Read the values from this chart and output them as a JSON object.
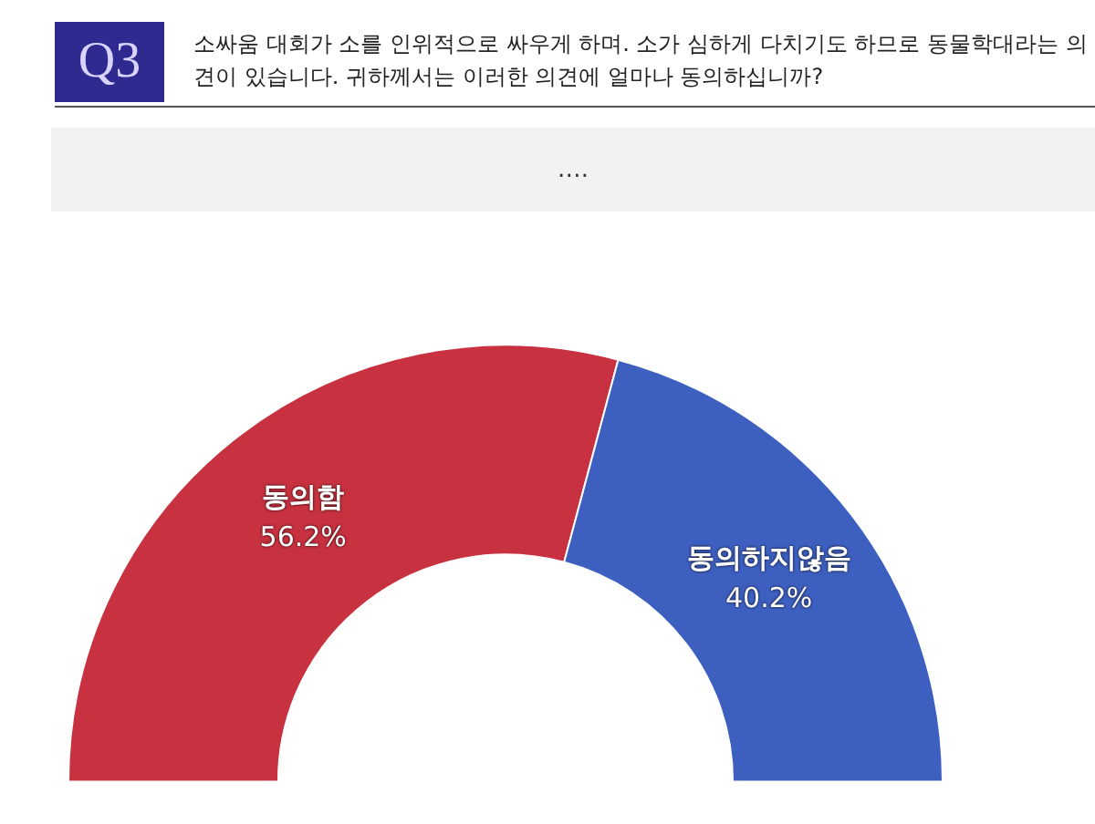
{
  "chart_data": {
    "type": "donut",
    "title": "소싸움 대회가 소를 인위적으로 싸우게 하며. 소가 심하게 다치기도 하므로 동물학대라는 의견이 있습니다. 귀하께서는 이러한 의견에 얼마나 동의하십니까?",
    "annotations": [
      "Q3",
      "…."
    ],
    "categories": [
      "동의함",
      "동의하지않음"
    ],
    "values": [
      56.2,
      40.2
    ],
    "colors": [
      "#c8313f",
      "#3d5fc0"
    ],
    "value_labels": [
      "56.2%",
      "40.2%"
    ],
    "legend": false
  }
}
